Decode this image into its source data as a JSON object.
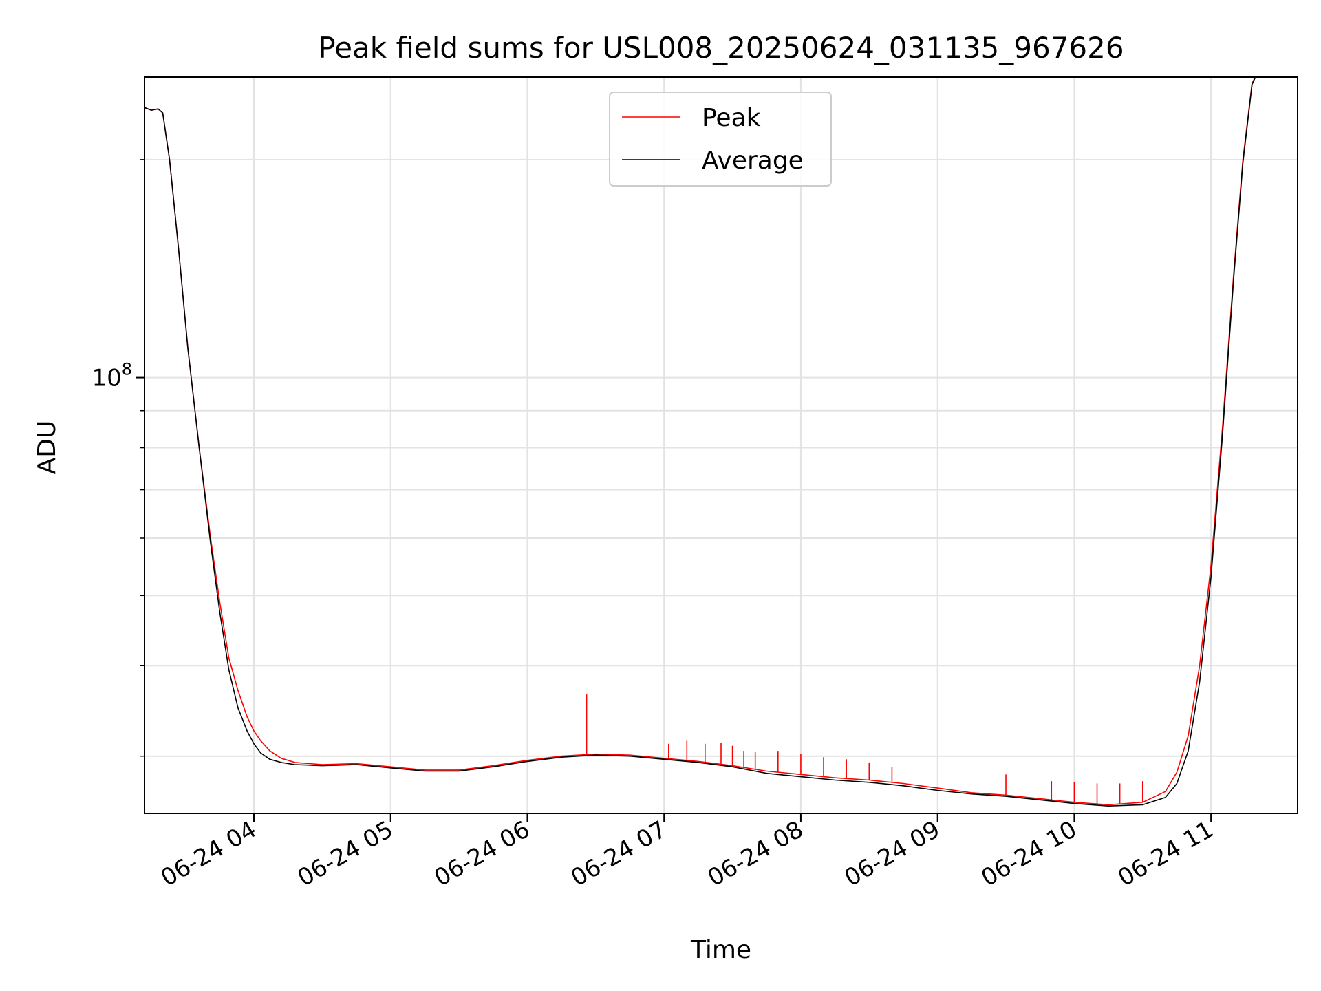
{
  "chart_data": {
    "type": "line",
    "title": "Peak field sums for USL008_20250624_031135_967626",
    "xlabel": "Time",
    "ylabel": "ADU",
    "x_scale": "time",
    "y_scale": "log",
    "xlim": [
      "06-24 03:12",
      "06-24 11:38"
    ],
    "ylim": [
      25000000,
      260000000
    ],
    "x_ticks": [
      {
        "label": "06-24 04",
        "x": "06-24 04:00"
      },
      {
        "label": "06-24 05",
        "x": "06-24 05:00"
      },
      {
        "label": "06-24 06",
        "x": "06-24 06:00"
      },
      {
        "label": "06-24 07",
        "x": "06-24 07:00"
      },
      {
        "label": "06-24 08",
        "x": "06-24 08:00"
      },
      {
        "label": "06-24 09",
        "x": "06-24 09:00"
      },
      {
        "label": "06-24 10",
        "x": "06-24 10:00"
      },
      {
        "label": "06-24 11",
        "x": "06-24 11:00"
      }
    ],
    "y_major_tick": {
      "base": "10",
      "exponent": "8",
      "y": 100000000
    },
    "y_minor_ticks": [
      30000000,
      40000000,
      50000000,
      60000000,
      70000000,
      80000000,
      90000000,
      200000000
    ],
    "grid": true,
    "legend_position": "top-center",
    "series": [
      {
        "name": "Peak",
        "color": "#ff0000",
        "points": [
          [
            "06-24 03:12",
            236000000
          ],
          [
            "06-24 03:15",
            234000000
          ],
          [
            "06-24 03:18",
            235000000
          ],
          [
            "06-24 03:20",
            232000000
          ],
          [
            "06-24 03:23",
            200000000
          ],
          [
            "06-24 03:27",
            150000000
          ],
          [
            "06-24 03:31",
            110000000
          ],
          [
            "06-24 03:36",
            80000000
          ],
          [
            "06-24 03:41",
            60000000
          ],
          [
            "06-24 03:45",
            49000000
          ],
          [
            "06-24 03:49",
            41000000
          ],
          [
            "06-24 03:53",
            37000000
          ],
          [
            "06-24 03:57",
            34000000
          ],
          [
            "06-24 04:00",
            32500000
          ],
          [
            "06-24 04:03",
            31500000
          ],
          [
            "06-24 04:07",
            30500000
          ],
          [
            "06-24 04:12",
            29800000
          ],
          [
            "06-24 04:18",
            29400000
          ],
          [
            "06-24 04:30",
            29200000
          ],
          [
            "06-24 04:45",
            29300000
          ],
          [
            "06-24 05:00",
            29000000
          ],
          [
            "06-24 05:15",
            28700000
          ],
          [
            "06-24 05:30",
            28700000
          ],
          [
            "06-24 05:45",
            29100000
          ],
          [
            "06-24 06:00",
            29600000
          ],
          [
            "06-24 06:15",
            30000000
          ],
          [
            "06-24 06:30",
            30200000
          ],
          [
            "06-24 06:45",
            30100000
          ],
          [
            "06-24 07:00",
            29800000
          ],
          [
            "06-24 07:15",
            29500000
          ],
          [
            "06-24 07:30",
            29100000
          ],
          [
            "06-24 07:45",
            28600000
          ],
          [
            "06-24 08:00",
            28300000
          ],
          [
            "06-24 08:15",
            28000000
          ],
          [
            "06-24 08:30",
            27800000
          ],
          [
            "06-24 08:45",
            27500000
          ],
          [
            "06-24 09:00",
            27100000
          ],
          [
            "06-24 09:15",
            26700000
          ],
          [
            "06-24 09:30",
            26500000
          ],
          [
            "06-24 09:45",
            26200000
          ],
          [
            "06-24 10:00",
            25900000
          ],
          [
            "06-24 10:15",
            25700000
          ],
          [
            "06-24 10:30",
            25900000
          ],
          [
            "06-24 10:40",
            26800000
          ],
          [
            "06-24 10:45",
            28500000
          ],
          [
            "06-24 10:50",
            32000000
          ],
          [
            "06-24 10:55",
            40000000
          ],
          [
            "06-24 11:00",
            55000000
          ],
          [
            "06-24 11:05",
            85000000
          ],
          [
            "06-24 11:10",
            140000000
          ],
          [
            "06-24 11:14",
            200000000
          ],
          [
            "06-24 11:18",
            255000000
          ],
          [
            "06-24 11:20",
            262000000
          ]
        ],
        "spikes": [
          [
            "06-24 06:26",
            36500000
          ],
          [
            "06-24 07:02",
            31200000
          ],
          [
            "06-24 07:10",
            31500000
          ],
          [
            "06-24 07:18",
            31200000
          ],
          [
            "06-24 07:25",
            31300000
          ],
          [
            "06-24 07:30",
            31000000
          ],
          [
            "06-24 07:35",
            30500000
          ],
          [
            "06-24 07:40",
            30400000
          ],
          [
            "06-24 07:50",
            30500000
          ],
          [
            "06-24 08:00",
            30200000
          ],
          [
            "06-24 08:10",
            29900000
          ],
          [
            "06-24 08:20",
            29700000
          ],
          [
            "06-24 08:30",
            29400000
          ],
          [
            "06-24 08:40",
            29000000
          ],
          [
            "06-24 09:30",
            28300000
          ],
          [
            "06-24 09:50",
            27700000
          ],
          [
            "06-24 10:00",
            27600000
          ],
          [
            "06-24 10:10",
            27500000
          ],
          [
            "06-24 10:20",
            27500000
          ],
          [
            "06-24 10:30",
            27700000
          ]
        ]
      },
      {
        "name": "Average",
        "color": "#000000",
        "points": [
          [
            "06-24 03:12",
            236000000
          ],
          [
            "06-24 03:15",
            234000000
          ],
          [
            "06-24 03:18",
            235000000
          ],
          [
            "06-24 03:20",
            232000000
          ],
          [
            "06-24 03:23",
            200000000
          ],
          [
            "06-24 03:27",
            150000000
          ],
          [
            "06-24 03:31",
            110000000
          ],
          [
            "06-24 03:36",
            80000000
          ],
          [
            "06-24 03:41",
            59000000
          ],
          [
            "06-24 03:45",
            47500000
          ],
          [
            "06-24 03:49",
            39500000
          ],
          [
            "06-24 03:53",
            35000000
          ],
          [
            "06-24 03:57",
            32500000
          ],
          [
            "06-24 04:00",
            31200000
          ],
          [
            "06-24 04:03",
            30300000
          ],
          [
            "06-24 04:07",
            29700000
          ],
          [
            "06-24 04:12",
            29400000
          ],
          [
            "06-24 04:18",
            29200000
          ],
          [
            "06-24 04:30",
            29100000
          ],
          [
            "06-24 04:45",
            29200000
          ],
          [
            "06-24 05:00",
            28900000
          ],
          [
            "06-24 05:15",
            28600000
          ],
          [
            "06-24 05:30",
            28600000
          ],
          [
            "06-24 05:45",
            29000000
          ],
          [
            "06-24 06:00",
            29500000
          ],
          [
            "06-24 06:15",
            29900000
          ],
          [
            "06-24 06:30",
            30100000
          ],
          [
            "06-24 06:45",
            30000000
          ],
          [
            "06-24 07:00",
            29700000
          ],
          [
            "06-24 07:15",
            29400000
          ],
          [
            "06-24 07:30",
            29000000
          ],
          [
            "06-24 07:45",
            28400000
          ],
          [
            "06-24 08:00",
            28100000
          ],
          [
            "06-24 08:15",
            27800000
          ],
          [
            "06-24 08:30",
            27600000
          ],
          [
            "06-24 08:45",
            27300000
          ],
          [
            "06-24 09:00",
            26900000
          ],
          [
            "06-24 09:15",
            26600000
          ],
          [
            "06-24 09:30",
            26400000
          ],
          [
            "06-24 09:45",
            26100000
          ],
          [
            "06-24 10:00",
            25800000
          ],
          [
            "06-24 10:15",
            25600000
          ],
          [
            "06-24 10:30",
            25700000
          ],
          [
            "06-24 10:40",
            26300000
          ],
          [
            "06-24 10:45",
            27500000
          ],
          [
            "06-24 10:50",
            30500000
          ],
          [
            "06-24 10:55",
            38000000
          ],
          [
            "06-24 11:00",
            53000000
          ],
          [
            "06-24 11:05",
            83000000
          ],
          [
            "06-24 11:10",
            138000000
          ],
          [
            "06-24 11:14",
            198000000
          ],
          [
            "06-24 11:18",
            254000000
          ],
          [
            "06-24 11:20",
            262000000
          ]
        ]
      }
    ]
  }
}
